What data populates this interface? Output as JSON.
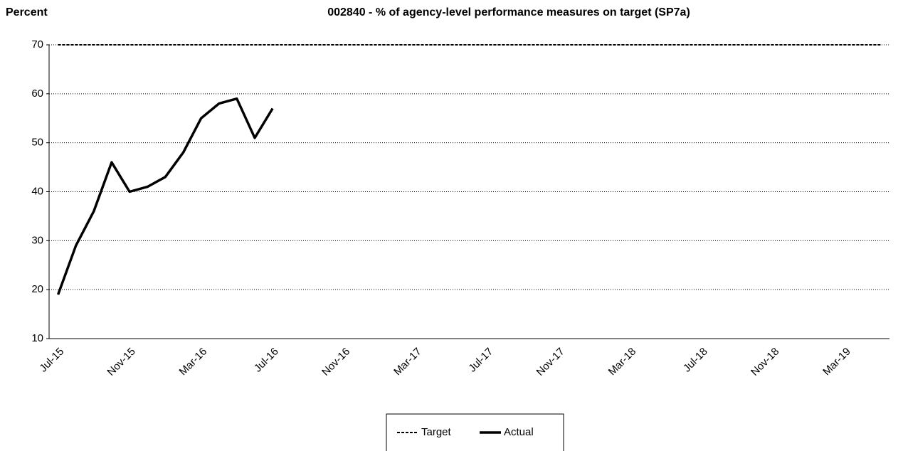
{
  "chart_data": {
    "type": "line",
    "title": "002840 - % of agency-level performance measures on target (SP7a)",
    "y_label": "Percent",
    "categories": [
      "Jul-15",
      null,
      null,
      null,
      "Nov-15",
      null,
      null,
      null,
      "Mar-16",
      null,
      null,
      null,
      "Jul-16",
      null,
      null,
      null,
      "Nov-16",
      null,
      null,
      null,
      "Mar-17",
      null,
      null,
      null,
      "Jul-17",
      null,
      null,
      null,
      "Nov-17",
      null,
      null,
      null,
      "Mar-18",
      null,
      null,
      null,
      "Jul-18",
      null,
      null,
      null,
      "Nov-18",
      null,
      null,
      null,
      "Mar-19",
      null,
      null
    ],
    "series": [
      {
        "name": "Target",
        "color": "#000000",
        "dash": true,
        "values": [
          70,
          70,
          70,
          70,
          70,
          70,
          70,
          70,
          70,
          70,
          70,
          70,
          70,
          70,
          70,
          70,
          70,
          70,
          70,
          70,
          70,
          70,
          70,
          70,
          70,
          70,
          70,
          70,
          70,
          70,
          70,
          70,
          70,
          70,
          70,
          70,
          70,
          70,
          70,
          70,
          70,
          70,
          70,
          70,
          70,
          70,
          70
        ]
      },
      {
        "name": "Actual",
        "color": "#000000",
        "dash": false,
        "values": [
          19,
          29,
          36,
          46,
          40,
          41,
          43,
          48,
          55,
          58,
          59,
          51,
          57,
          null,
          null,
          null,
          null,
          null,
          null,
          null,
          null,
          null,
          null,
          null,
          null,
          null,
          null,
          null,
          null,
          null,
          null,
          null,
          null,
          null,
          null,
          null,
          null,
          null,
          null,
          null,
          null,
          null,
          null,
          null,
          null,
          null,
          null
        ]
      }
    ],
    "ylim": [
      10,
      70
    ],
    "yticks": [
      10,
      20,
      30,
      40,
      50,
      60,
      70
    ],
    "grid": true,
    "legend": "bottom"
  }
}
